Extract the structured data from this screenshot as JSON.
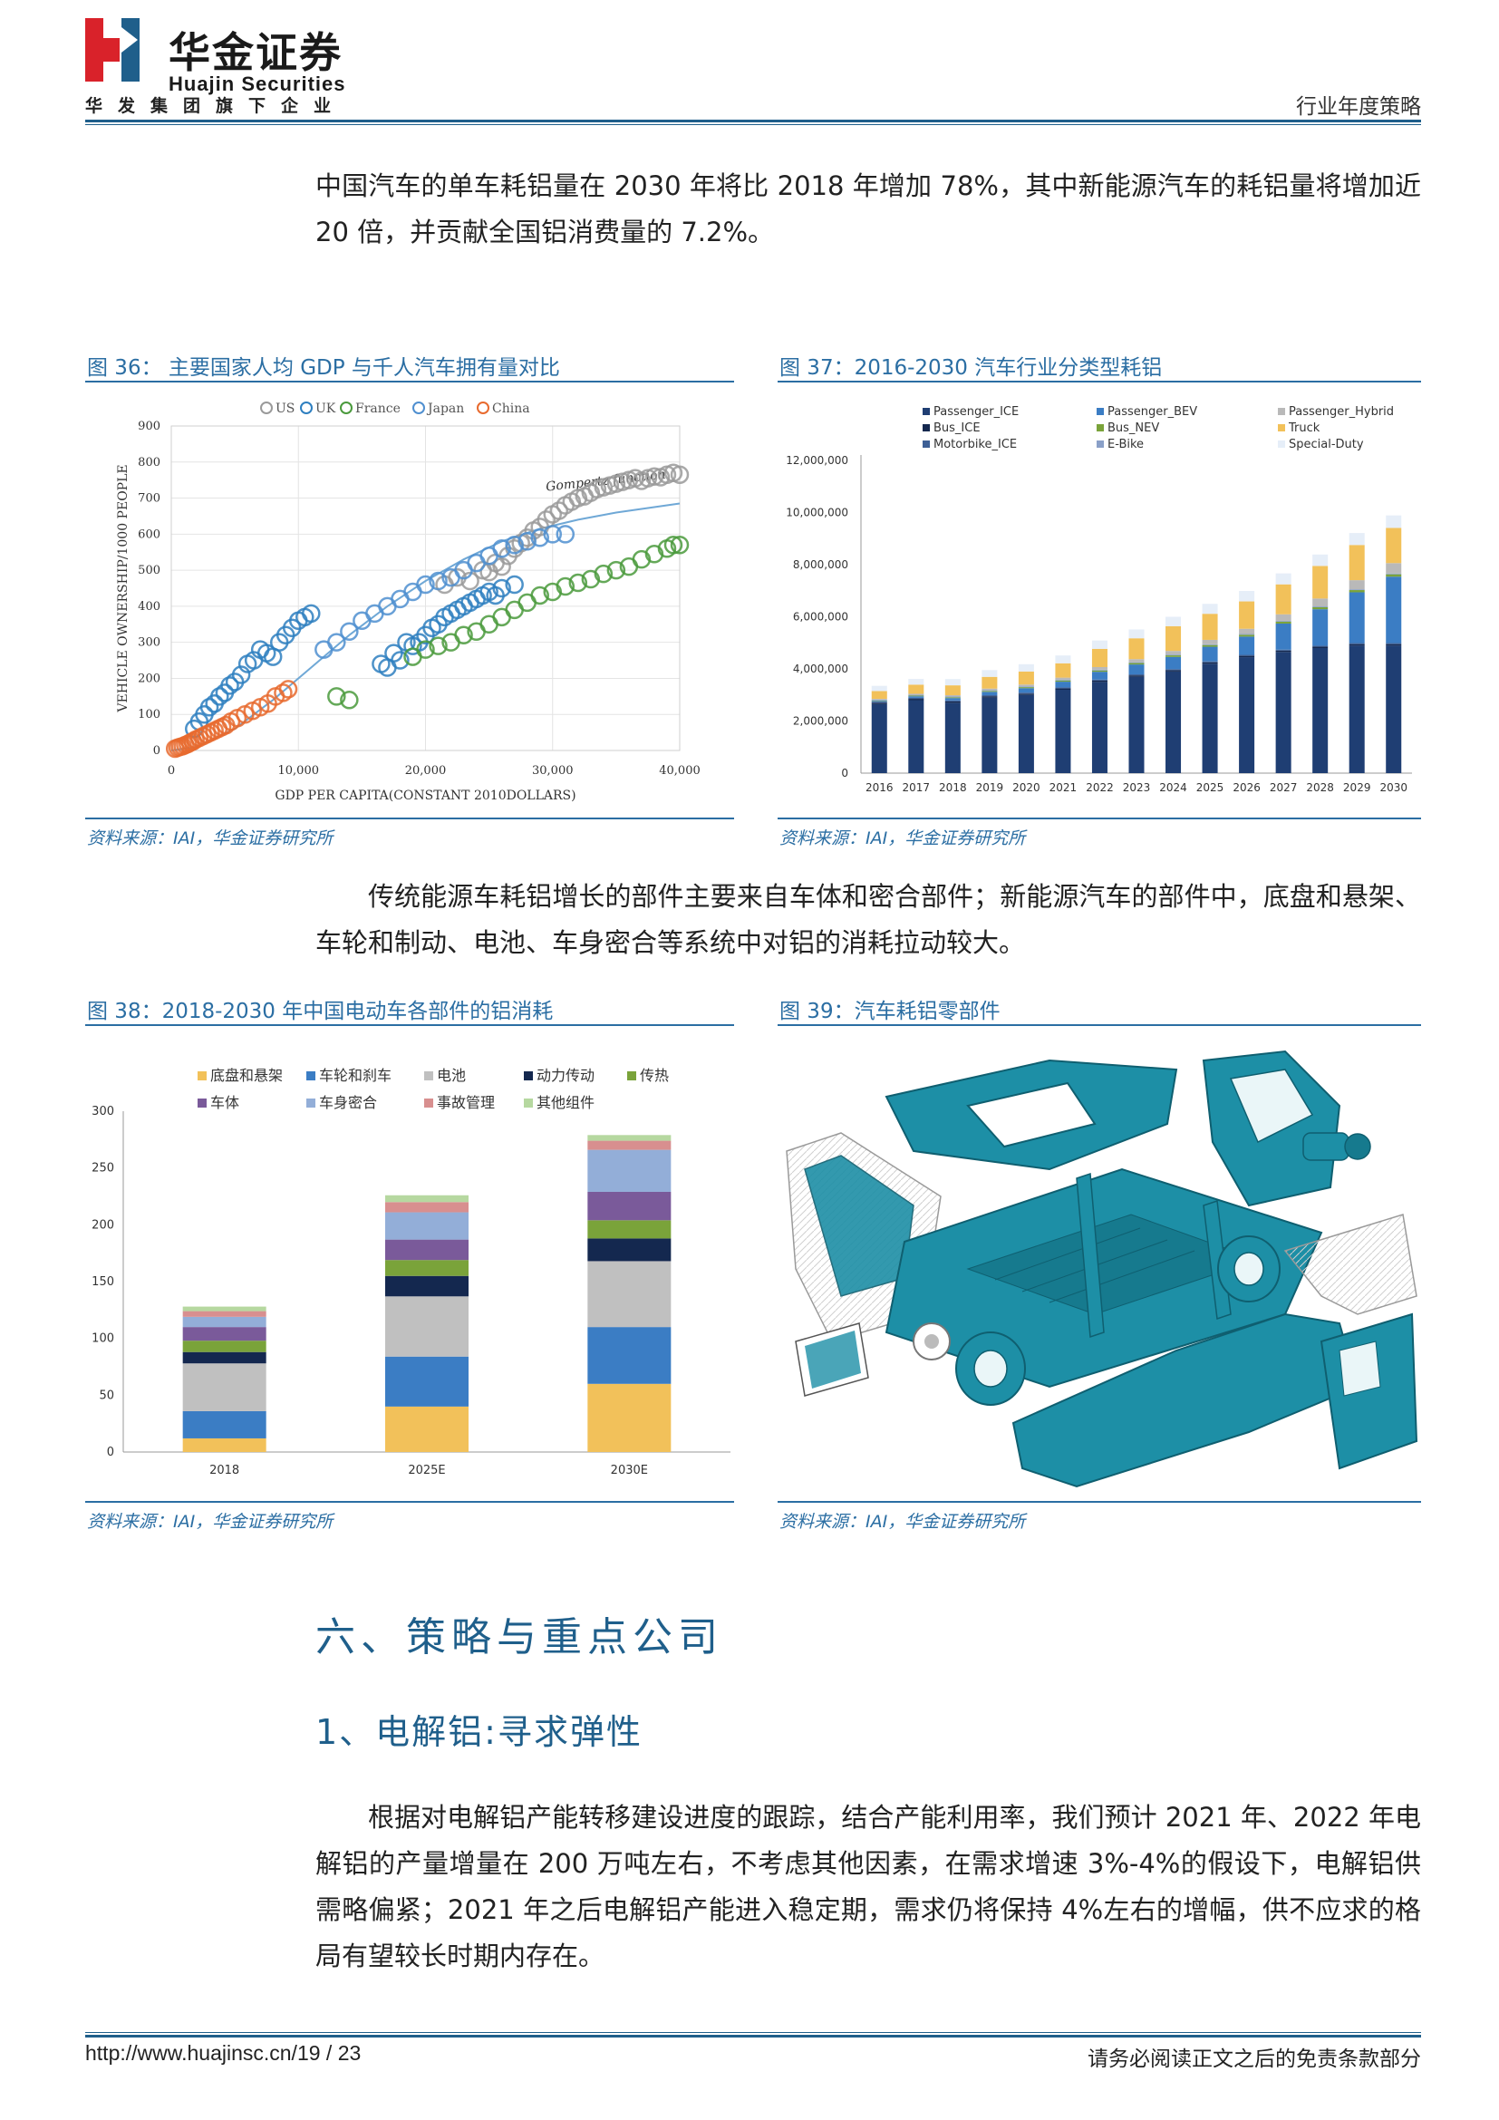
{
  "header": {
    "logo_cn": "华金证券",
    "logo_en": "Huajin Securities",
    "tagline": "华发集团旗下企业",
    "doc_type": "行业年度策略"
  },
  "paragraphs": {
    "p1": "中国汽车的单车耗铝量在 2030 年将比 2018 年增加 78%，其中新能源汽车的耗铝量将增加近 20 倍，并贡献全国铝消费量的 7.2%。",
    "p2": "传统能源车耗铝增长的部件主要来自车体和密合部件；新能源汽车的部件中，底盘和悬架、车轮和制动、电池、车身密合等系统中对铝的消耗拉动较大。",
    "p3": "根据对电解铝产能转移建设进度的跟踪，结合产能利用率，我们预计 2021 年、2022 年电解铝的产量增量在 200 万吨左右，不考虑其他因素，在需求增速 3%-4%的假设下，电解铝供需略偏紧；2021 年之后电解铝产能进入稳定期，需求仍将保持 4%左右的增幅，供不应求的格局有望较长时期内存在。"
  },
  "figures": {
    "fig36": {
      "title": "图 36：  主要国家人均 GDP 与千人汽车拥有量对比",
      "source": "资料来源：IAI，华金证券研究所"
    },
    "fig37": {
      "title": "图 37：2016-2030 汽车行业分类型耗铝",
      "source": "资料来源：IAI，华金证券研究所"
    },
    "fig38": {
      "title": "图 38：2018-2030 年中国电动车各部件的铝消耗",
      "source": "资料来源：IAI，华金证券研究所"
    },
    "fig39": {
      "title": "图 39：汽车耗铝零部件",
      "source": "资料来源：IAI，华金证券研究所"
    }
  },
  "headings": {
    "section": "六、策略与重点公司",
    "subsection": "1、电解铝:寻求弹性"
  },
  "footer": {
    "url": "http://www.huajinsc.cn/",
    "page": "19 / 23",
    "disclaimer": "请务必阅读正文之后的免责条款部分"
  },
  "colors": {
    "brand_red": "#d9222a",
    "brand_blue": "#1f5f8b",
    "caption_blue": "#2b6ea3",
    "car_teal": "#1d8fa6"
  },
  "chart_data": [
    {
      "id": "fig36",
      "type": "scatter",
      "xlabel": "GDP PER CAPITA(CONSTANT 2010DOLLARS)",
      "ylabel": "VEHICLE OWNERSHIP/1000 PEOPLE",
      "xlim": [
        0,
        40000
      ],
      "ylim": [
        0,
        900
      ],
      "xticks": [
        0,
        10000,
        20000,
        30000,
        40000
      ],
      "xtick_labels": [
        "0",
        "10,000",
        "20,000",
        "30,000",
        "40,000"
      ],
      "yticks": [
        0,
        100,
        200,
        300,
        400,
        500,
        600,
        700,
        800,
        900
      ],
      "grid": true,
      "legend_position": "top",
      "annotation": "Gompertz function",
      "curve": [
        [
          0,
          0
        ],
        [
          2000,
          10
        ],
        [
          5000,
          60
        ],
        [
          8000,
          140
        ],
        [
          11000,
          230
        ],
        [
          14000,
          320
        ],
        [
          17000,
          400
        ],
        [
          20000,
          470
        ],
        [
          23000,
          530
        ],
        [
          26000,
          580
        ],
        [
          29000,
          615
        ],
        [
          32000,
          640
        ],
        [
          35000,
          660
        ],
        [
          40000,
          685
        ]
      ],
      "series": [
        {
          "name": "US",
          "color": "#9a9a9a",
          "points": [
            [
              21500,
              460
            ],
            [
              22500,
              480
            ],
            [
              23500,
              470
            ],
            [
              24500,
              500
            ],
            [
              25000,
              495
            ],
            [
              25500,
              520
            ],
            [
              26000,
              510
            ],
            [
              26500,
              540
            ],
            [
              27000,
              560
            ],
            [
              27500,
              575
            ],
            [
              28000,
              590
            ],
            [
              28500,
              610
            ],
            [
              29000,
              620
            ],
            [
              29500,
              640
            ],
            [
              30000,
              655
            ],
            [
              30500,
              665
            ],
            [
              31000,
              680
            ],
            [
              31500,
              690
            ],
            [
              32000,
              700
            ],
            [
              32500,
              705
            ],
            [
              33000,
              715
            ],
            [
              33500,
              725
            ],
            [
              34000,
              730
            ],
            [
              34500,
              735
            ],
            [
              35000,
              740
            ],
            [
              35500,
              745
            ],
            [
              36000,
              750
            ],
            [
              36500,
              755
            ],
            [
              37000,
              748
            ],
            [
              37500,
              755
            ],
            [
              38000,
              760
            ],
            [
              38500,
              758
            ],
            [
              39000,
              765
            ],
            [
              39500,
              770
            ],
            [
              40000,
              765
            ]
          ]
        },
        {
          "name": "UK",
          "color": "#2e7fc0",
          "points": [
            [
              1800,
              60
            ],
            [
              2200,
              80
            ],
            [
              2600,
              100
            ],
            [
              3000,
              120
            ],
            [
              3400,
              130
            ],
            [
              3800,
              150
            ],
            [
              4200,
              160
            ],
            [
              4600,
              180
            ],
            [
              5000,
              190
            ],
            [
              5500,
              210
            ],
            [
              6000,
              240
            ],
            [
              6500,
              250
            ],
            [
              7000,
              280
            ],
            [
              7500,
              270
            ],
            [
              8000,
              260
            ],
            [
              8500,
              300
            ],
            [
              9000,
              320
            ],
            [
              9500,
              340
            ],
            [
              10000,
              360
            ],
            [
              10500,
              370
            ],
            [
              11000,
              380
            ],
            [
              16500,
              240
            ],
            [
              17500,
              270
            ],
            [
              18500,
              300
            ],
            [
              17000,
              230
            ],
            [
              18000,
              250
            ],
            [
              19000,
              290
            ],
            [
              19500,
              300
            ],
            [
              20000,
              320
            ],
            [
              20500,
              340
            ],
            [
              21000,
              350
            ],
            [
              21500,
              370
            ],
            [
              22000,
              380
            ],
            [
              22500,
              390
            ],
            [
              23000,
              400
            ],
            [
              23500,
              410
            ],
            [
              24000,
              420
            ],
            [
              24500,
              430
            ],
            [
              25000,
              440
            ],
            [
              25500,
              430
            ],
            [
              26000,
              450
            ],
            [
              27000,
              460
            ]
          ]
        },
        {
          "name": "France",
          "color": "#4a9a3c",
          "points": [
            [
              13000,
              150
            ],
            [
              14000,
              140
            ],
            [
              19000,
              260
            ],
            [
              20000,
              280
            ],
            [
              21000,
              290
            ],
            [
              22000,
              300
            ],
            [
              23000,
              320
            ],
            [
              24000,
              330
            ],
            [
              25000,
              350
            ],
            [
              26000,
              370
            ],
            [
              27000,
              390
            ],
            [
              28000,
              410
            ],
            [
              29000,
              430
            ],
            [
              30000,
              440
            ],
            [
              31000,
              455
            ],
            [
              32000,
              465
            ],
            [
              33000,
              475
            ],
            [
              34000,
              490
            ],
            [
              35000,
              500
            ],
            [
              36000,
              510
            ],
            [
              37000,
              530
            ],
            [
              38000,
              545
            ],
            [
              39000,
              560
            ],
            [
              39500,
              570
            ],
            [
              40000,
              570
            ]
          ]
        },
        {
          "name": "Japan",
          "color": "#4f8fd0",
          "points": [
            [
              12000,
              280
            ],
            [
              13000,
              300
            ],
            [
              14000,
              330
            ],
            [
              15000,
              360
            ],
            [
              16000,
              380
            ],
            [
              17000,
              400
            ],
            [
              18000,
              420
            ],
            [
              19000,
              440
            ],
            [
              20000,
              460
            ],
            [
              21000,
              470
            ],
            [
              22000,
              480
            ],
            [
              23000,
              500
            ],
            [
              24000,
              520
            ],
            [
              25000,
              540
            ],
            [
              26000,
              560
            ],
            [
              27000,
              570
            ],
            [
              28000,
              580
            ],
            [
              29000,
              590
            ],
            [
              30000,
              600
            ],
            [
              31000,
              600
            ]
          ]
        },
        {
          "name": "China",
          "color": "#e86a2e",
          "points": [
            [
              300,
              5
            ],
            [
              500,
              8
            ],
            [
              700,
              10
            ],
            [
              900,
              12
            ],
            [
              1100,
              15
            ],
            [
              1300,
              18
            ],
            [
              1500,
              22
            ],
            [
              1700,
              25
            ],
            [
              1900,
              30
            ],
            [
              2200,
              35
            ],
            [
              2500,
              40
            ],
            [
              2800,
              45
            ],
            [
              3100,
              50
            ],
            [
              3400,
              55
            ],
            [
              3700,
              60
            ],
            [
              4000,
              65
            ],
            [
              4300,
              70
            ],
            [
              4700,
              80
            ],
            [
              5200,
              90
            ],
            [
              5800,
              100
            ],
            [
              6400,
              110
            ],
            [
              7000,
              120
            ],
            [
              7600,
              130
            ],
            [
              8200,
              150
            ],
            [
              8800,
              160
            ],
            [
              9200,
              170
            ]
          ]
        }
      ]
    },
    {
      "id": "fig37",
      "type": "bar",
      "stacked": true,
      "categories": [
        "2016",
        "2017",
        "2018",
        "2019",
        "2020",
        "2021",
        "2022",
        "2023",
        "2024",
        "2025",
        "2026",
        "2027",
        "2028",
        "2029",
        "2030"
      ],
      "ylim": [
        0,
        12000000
      ],
      "yticks": [
        0,
        2000000,
        4000000,
        6000000,
        8000000,
        10000000,
        12000000
      ],
      "ytick_labels": [
        "0",
        "2,000,000",
        "4,000,000",
        "6,000,000",
        "8,000,000",
        "10,000,000",
        "12,000,000"
      ],
      "legend_position": "top",
      "series": [
        {
          "name": "Passenger_ICE",
          "color": "#1f3e73",
          "values": [
            2650000,
            2800000,
            2700000,
            2900000,
            3000000,
            3200000,
            3500000,
            3700000,
            3900000,
            4200000,
            4450000,
            4650000,
            4800000,
            4900000,
            4900000
          ]
        },
        {
          "name": "Bus_ICE",
          "color": "#14284f",
          "values": [
            50000,
            50000,
            50000,
            50000,
            50000,
            50000,
            50000,
            50000,
            50000,
            50000,
            50000,
            50000,
            50000,
            50000,
            50000
          ]
        },
        {
          "name": "Motorbike_ICE",
          "color": "#3d5f95",
          "values": [
            40000,
            40000,
            40000,
            40000,
            40000,
            40000,
            40000,
            40000,
            40000,
            40000,
            40000,
            40000,
            40000,
            40000,
            40000
          ]
        },
        {
          "name": "Passenger_BEV",
          "color": "#3b7dc4",
          "values": [
            30000,
            60000,
            90000,
            130000,
            170000,
            220000,
            300000,
            380000,
            470000,
            560000,
            700000,
            1000000,
            1400000,
            1950000,
            2550000
          ]
        },
        {
          "name": "Bus_NEV",
          "color": "#7aa33a",
          "values": [
            20000,
            25000,
            30000,
            35000,
            40000,
            45000,
            50000,
            55000,
            60000,
            65000,
            70000,
            75000,
            80000,
            85000,
            90000
          ]
        },
        {
          "name": "E-Bike",
          "color": "#8aa0c8",
          "values": [
            30000,
            30000,
            30000,
            30000,
            30000,
            30000,
            30000,
            30000,
            30000,
            30000,
            30000,
            30000,
            30000,
            30000,
            30000
          ]
        },
        {
          "name": "Passenger_Hybrid",
          "color": "#b9b9b9",
          "values": [
            30000,
            40000,
            50000,
            60000,
            70000,
            80000,
            100000,
            120000,
            140000,
            170000,
            200000,
            250000,
            300000,
            350000,
            400000
          ]
        },
        {
          "name": "Truck",
          "color": "#f2c15a",
          "values": [
            300000,
            350000,
            380000,
            450000,
            500000,
            550000,
            700000,
            800000,
            950000,
            1000000,
            1050000,
            1150000,
            1250000,
            1350000,
            1350000
          ]
        },
        {
          "name": "Special-Duty",
          "color": "#e6eef8",
          "values": [
            200000,
            220000,
            240000,
            260000,
            280000,
            300000,
            320000,
            340000,
            360000,
            380000,
            400000,
            420000,
            440000,
            460000,
            480000
          ]
        }
      ]
    },
    {
      "id": "fig38",
      "type": "bar",
      "stacked": true,
      "categories": [
        "2018",
        "2025E",
        "2030E"
      ],
      "ylim": [
        0,
        300
      ],
      "yticks": [
        0,
        50,
        100,
        150,
        200,
        250,
        300
      ],
      "legend_position": "top",
      "series": [
        {
          "name": "底盘和悬架",
          "color": "#f2c15a",
          "values": [
            12,
            40,
            60
          ]
        },
        {
          "name": "车轮和刹车",
          "color": "#3b7dc4",
          "values": [
            24,
            44,
            50
          ]
        },
        {
          "name": "电池",
          "color": "#c0c0c0",
          "values": [
            42,
            53,
            58
          ]
        },
        {
          "name": "动力传动",
          "color": "#14284f",
          "values": [
            10,
            18,
            20
          ]
        },
        {
          "name": "传热",
          "color": "#7aa33a",
          "values": [
            10,
            14,
            16
          ]
        },
        {
          "name": "车体",
          "color": "#7a5a9a",
          "values": [
            12,
            18,
            25
          ]
        },
        {
          "name": "车身密合",
          "color": "#93aed8",
          "values": [
            9,
            24,
            37
          ]
        },
        {
          "name": "事故管理",
          "color": "#d88f8f",
          "values": [
            5,
            9,
            8
          ]
        },
        {
          "name": "其他组件",
          "color": "#b6d8a0",
          "values": [
            4,
            6,
            5
          ]
        }
      ]
    }
  ]
}
